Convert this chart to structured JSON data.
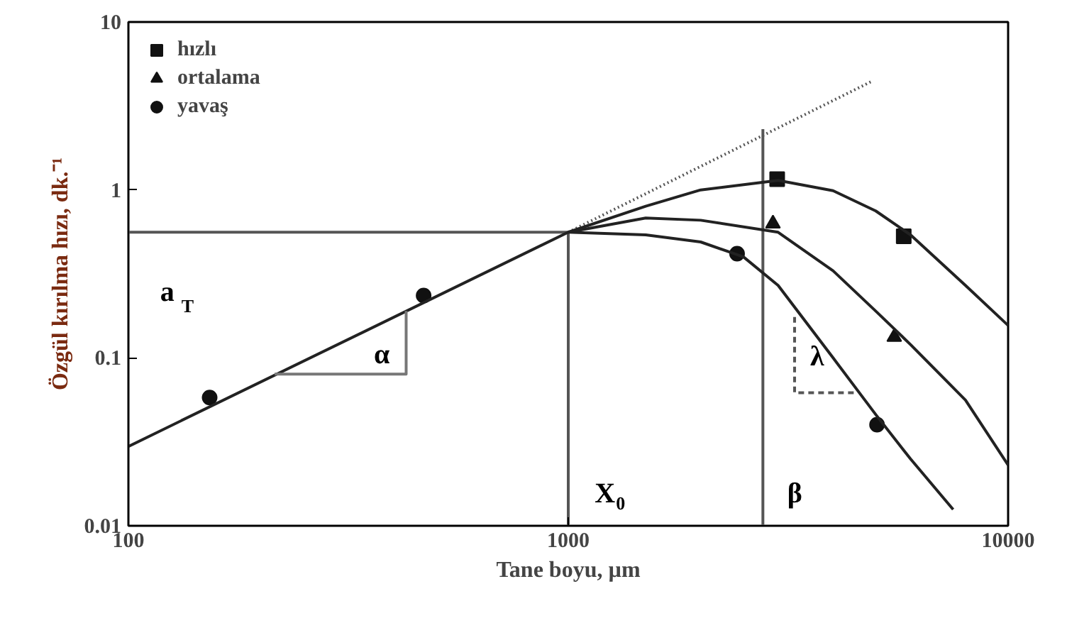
{
  "chart_data": {
    "type": "line",
    "xlabel": "Tane boyu, µm",
    "ylabel": "Özgül kırılma hızı, dk.⁻¹",
    "log": "xy",
    "grid": false,
    "legend": "top left",
    "xlim": [
      100,
      10000
    ],
    "xticks": [
      100,
      1000,
      10000
    ],
    "ylim": [
      0.01,
      10
    ],
    "yticks": [
      0.01,
      0.1,
      1,
      10
    ],
    "series": [
      {
        "name": "hızlı",
        "type": "scatter",
        "marker": "square",
        "color": "#111111",
        "x": [
          2985,
          5790
        ],
        "values": [
          1.16,
          0.53
        ]
      },
      {
        "name": "ortalama",
        "type": "scatter",
        "marker": "triangle",
        "color": "#111111",
        "x": [
          2920,
          5510
        ],
        "values": [
          0.63,
          0.133
        ]
      },
      {
        "name": "yavaş",
        "type": "scatter",
        "marker": "circle",
        "color": "#111111",
        "x": [
          153,
          469,
          2420,
          5035
        ],
        "values": [
          0.058,
          0.235,
          0.417,
          0.04
        ]
      },
      {
        "type": "line",
        "color": "#555555",
        "line_style": "dotted",
        "x": [
          1000,
          4920
        ],
        "values": [
          0.56,
          4.46
        ]
      },
      {
        "color": "#555555",
        "line_style": "solid",
        "x": [
          100,
          1000,
          1000
        ],
        "values": [
          0.56,
          0.56,
          0.01
        ]
      },
      {
        "color": "#555555",
        "line_style": "solid",
        "x": [
          2770,
          2770
        ],
        "values": [
          0.01,
          2.3
        ]
      },
      {
        "color": "#222222",
        "line_style": "solid",
        "x": [
          100,
          1000,
          1500,
          2000,
          3000,
          4000,
          5000,
          6000,
          8000,
          10000
        ],
        "values": [
          0.0297,
          0.56,
          0.8,
          1.0,
          1.14,
          0.99,
          0.75,
          0.54,
          0.27,
          0.156
        ]
      },
      {
        "color": "#222222",
        "line_style": "solid",
        "x": [
          1000,
          1500,
          2000,
          3000,
          4000,
          5000,
          6000,
          8000,
          10000
        ],
        "values": [
          0.56,
          0.68,
          0.66,
          0.56,
          0.33,
          0.19,
          0.12,
          0.056,
          0.023
        ]
      },
      {
        "color": "#222222",
        "line_style": "solid",
        "x": [
          1000,
          1500,
          2000,
          2500,
          3000,
          4000,
          5000,
          6000,
          7500
        ],
        "values": [
          0.56,
          0.54,
          0.49,
          0.4,
          0.27,
          0.1,
          0.046,
          0.025,
          0.0125
        ]
      },
      {
        "color": "#777777",
        "line_style": "solid",
        "x": [
          215,
          428,
          428
        ],
        "values": [
          0.08,
          0.08,
          0.19
        ]
      },
      {
        "color": "#555555",
        "line_style": "dashed",
        "x": [
          3270,
          3270,
          4470
        ],
        "values": [
          0.175,
          0.062,
          0.062
        ]
      }
    ],
    "annotations": [
      "a$_{T}$",
      "α",
      "λ",
      "X$_{0}$",
      "β"
    ]
  }
}
